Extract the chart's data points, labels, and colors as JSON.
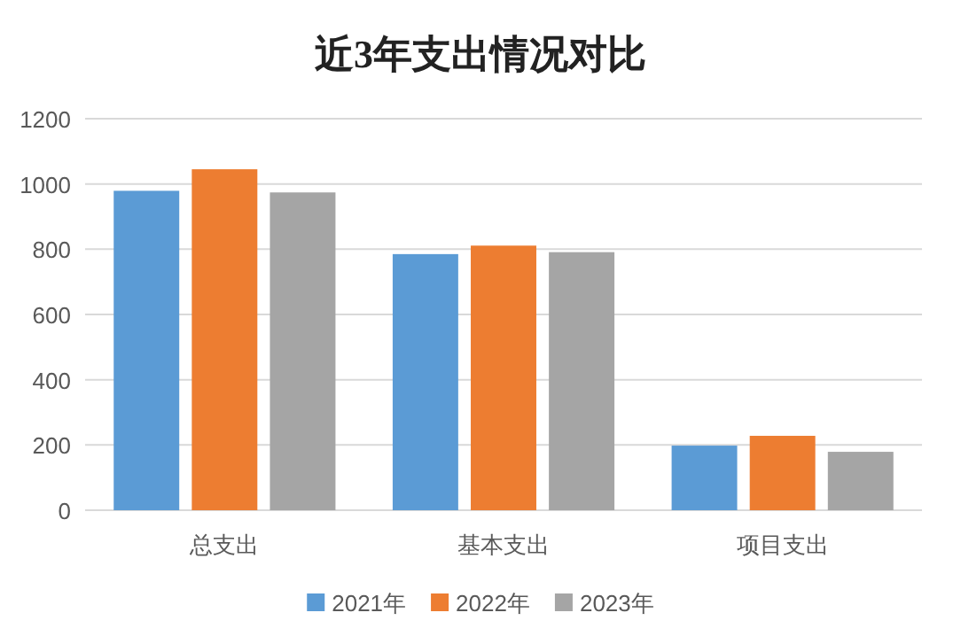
{
  "chart_data": {
    "type": "bar",
    "title": "近3年支出情况对比",
    "categories": [
      "总支出",
      "基本支出",
      "项目支出"
    ],
    "series": [
      {
        "name": "2021年",
        "color": "#5b9bd5",
        "values": [
          979,
          785,
          198
        ]
      },
      {
        "name": "2022年",
        "color": "#ed7d31",
        "values": [
          1045,
          811,
          228
        ]
      },
      {
        "name": "2023年",
        "color": "#a5a5a5",
        "values": [
          974,
          791,
          179
        ]
      }
    ],
    "ylim": [
      0,
      1200
    ],
    "yticks": [
      0,
      200,
      400,
      600,
      800,
      1000,
      1200
    ],
    "grid": "y",
    "legend": "bottom"
  }
}
